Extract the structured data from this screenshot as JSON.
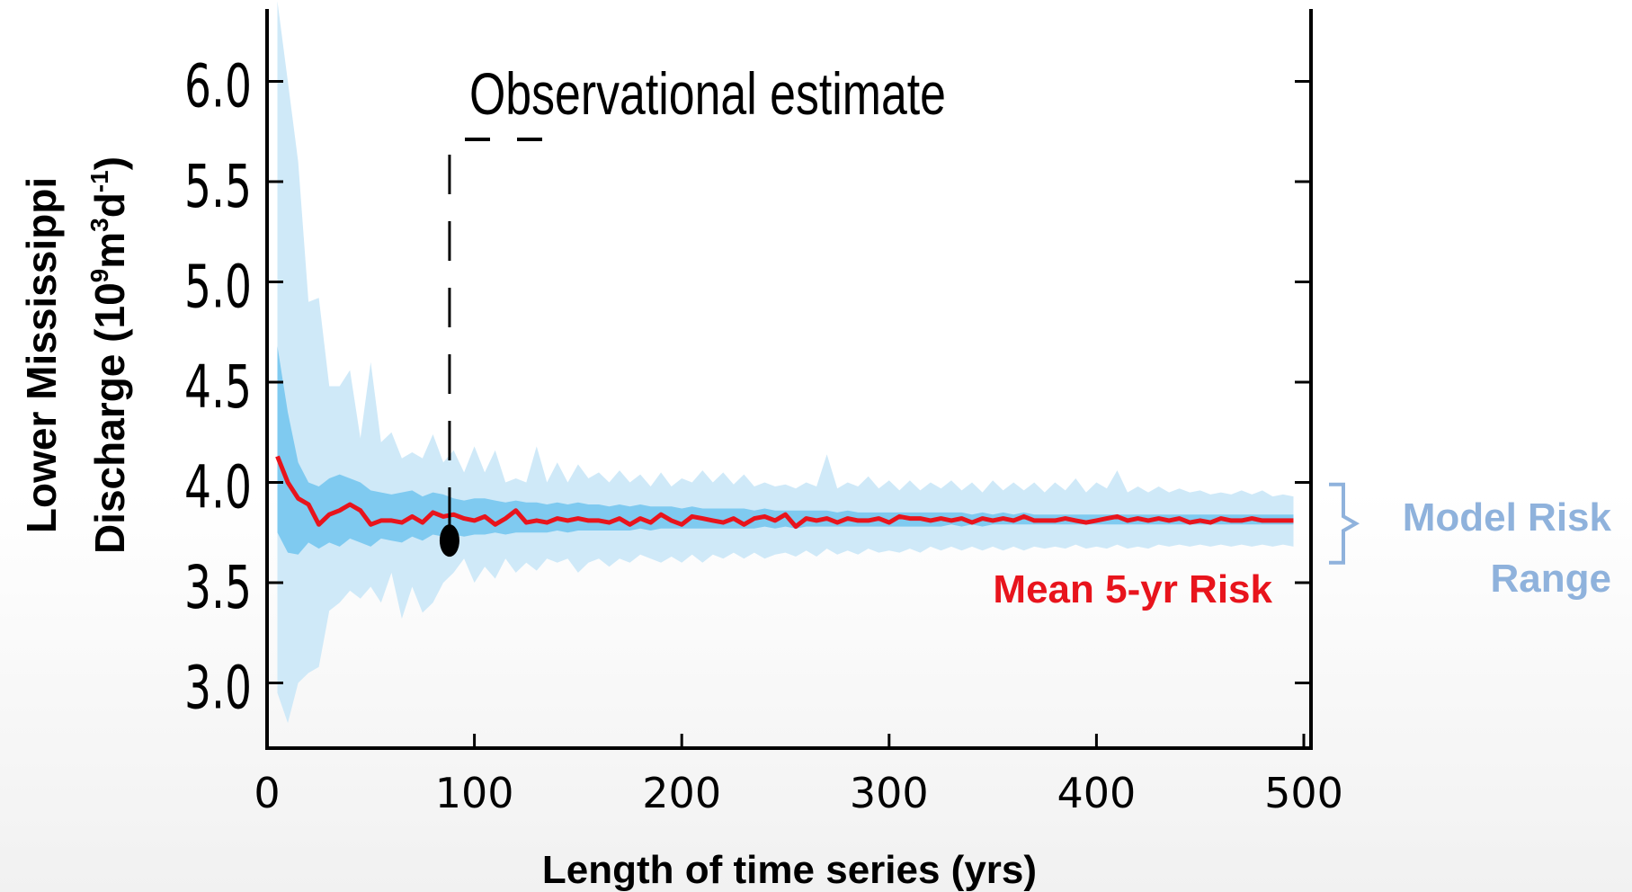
{
  "chart_data": {
    "type": "area",
    "xlabel": "Length of time series (yrs)",
    "ylabel_line1": "Lower Mississippi",
    "ylabel_line2": "Discharge (10",
    "ylabel_sup1": "9",
    "ylabel_mid": "m",
    "ylabel_sup2": "3",
    "ylabel_mid2": "d",
    "ylabel_sup3": "-1",
    "ylabel_end": ")",
    "xlim": [
      0,
      500
    ],
    "ylim": [
      2.7,
      6.35
    ],
    "x_ticks": [
      "0",
      "100",
      "200",
      "300",
      "400",
      "500"
    ],
    "y_ticks": [
      "3.0",
      "3.5",
      "4.0",
      "4.5",
      "5.0",
      "5.5",
      "6.0"
    ],
    "annotation_observational": "Observational estimate",
    "observational_point": {
      "x": 88,
      "y": 3.71
    },
    "mean_label": "Mean 5-yr Risk",
    "range_label_line1": "Model Risk",
    "range_label_line2": "Range",
    "colors": {
      "outer_band": "#cfe9f8",
      "inner_band": "#7fcaf0",
      "mean_line": "#e8141c",
      "range_text": "#8fb2dc",
      "axis": "#000000"
    },
    "x": [
      5,
      10,
      15,
      20,
      25,
      30,
      35,
      40,
      45,
      50,
      55,
      60,
      65,
      70,
      75,
      80,
      85,
      90,
      95,
      100,
      105,
      110,
      115,
      120,
      125,
      130,
      135,
      140,
      145,
      150,
      155,
      160,
      165,
      170,
      175,
      180,
      185,
      190,
      195,
      200,
      205,
      210,
      215,
      220,
      225,
      230,
      235,
      240,
      245,
      250,
      255,
      260,
      265,
      270,
      275,
      280,
      285,
      290,
      295,
      300,
      305,
      310,
      315,
      320,
      325,
      330,
      335,
      340,
      345,
      350,
      355,
      360,
      365,
      370,
      375,
      380,
      385,
      390,
      395,
      400,
      405,
      410,
      415,
      420,
      425,
      430,
      435,
      440,
      445,
      450,
      455,
      460,
      465,
      470,
      475,
      480,
      485,
      490,
      495
    ],
    "series": [
      {
        "role": "mean",
        "values": [
          4.13,
          4.0,
          3.92,
          3.89,
          3.79,
          3.84,
          3.86,
          3.89,
          3.86,
          3.79,
          3.81,
          3.81,
          3.8,
          3.83,
          3.8,
          3.85,
          3.83,
          3.84,
          3.82,
          3.81,
          3.83,
          3.79,
          3.82,
          3.86,
          3.8,
          3.81,
          3.8,
          3.82,
          3.81,
          3.82,
          3.81,
          3.81,
          3.8,
          3.82,
          3.79,
          3.82,
          3.8,
          3.84,
          3.81,
          3.79,
          3.83,
          3.82,
          3.81,
          3.8,
          3.82,
          3.79,
          3.82,
          3.83,
          3.81,
          3.84,
          3.78,
          3.82,
          3.81,
          3.82,
          3.8,
          3.82,
          3.81,
          3.81,
          3.82,
          3.8,
          3.83,
          3.82,
          3.82,
          3.81,
          3.82,
          3.81,
          3.82,
          3.8,
          3.82,
          3.81,
          3.82,
          3.81,
          3.83,
          3.81,
          3.81,
          3.81,
          3.82,
          3.81,
          3.8,
          3.81,
          3.82,
          3.83,
          3.81,
          3.82,
          3.81,
          3.82,
          3.81,
          3.82,
          3.8,
          3.81,
          3.8,
          3.82,
          3.81,
          3.81,
          3.82,
          3.81,
          3.81,
          3.81,
          3.81
        ]
      },
      {
        "role": "outer_upper",
        "values": [
          6.4,
          6.0,
          5.6,
          4.9,
          4.92,
          4.48,
          4.48,
          4.56,
          4.22,
          4.6,
          4.2,
          4.25,
          4.12,
          4.15,
          4.12,
          4.24,
          4.1,
          4.16,
          4.05,
          4.18,
          4.05,
          4.16,
          4.0,
          4.02,
          4.0,
          4.18,
          4.0,
          4.1,
          4.0,
          4.09,
          4.02,
          4.05,
          4.0,
          4.06,
          4.0,
          4.04,
          3.98,
          4.05,
          3.98,
          4.02,
          4.0,
          4.06,
          4.0,
          4.05,
          3.99,
          4.04,
          3.98,
          4.0,
          3.98,
          3.99,
          3.97,
          4.0,
          3.98,
          4.14,
          3.97,
          4.0,
          3.98,
          4.03,
          3.97,
          4.01,
          3.96,
          4.01,
          3.96,
          4.0,
          3.97,
          4.01,
          3.96,
          4.0,
          3.95,
          4.01,
          3.96,
          4.0,
          3.96,
          4.0,
          3.95,
          4.0,
          3.96,
          4.02,
          3.95,
          4.0,
          3.97,
          4.06,
          3.95,
          3.98,
          3.95,
          3.98,
          3.95,
          3.97,
          3.95,
          3.96,
          3.94,
          3.95,
          3.94,
          3.96,
          3.94,
          3.96,
          3.93,
          3.94,
          3.93
        ]
      },
      {
        "role": "outer_lower",
        "values": [
          2.95,
          2.8,
          3.0,
          3.05,
          3.08,
          3.36,
          3.4,
          3.46,
          3.42,
          3.48,
          3.4,
          3.55,
          3.32,
          3.48,
          3.35,
          3.4,
          3.5,
          3.55,
          3.62,
          3.5,
          3.58,
          3.52,
          3.62,
          3.55,
          3.6,
          3.56,
          3.62,
          3.6,
          3.62,
          3.55,
          3.6,
          3.62,
          3.58,
          3.62,
          3.6,
          3.64,
          3.62,
          3.6,
          3.63,
          3.6,
          3.64,
          3.6,
          3.64,
          3.62,
          3.65,
          3.62,
          3.65,
          3.62,
          3.64,
          3.65,
          3.63,
          3.66,
          3.63,
          3.67,
          3.64,
          3.66,
          3.64,
          3.67,
          3.65,
          3.66,
          3.65,
          3.67,
          3.65,
          3.68,
          3.66,
          3.68,
          3.66,
          3.68,
          3.66,
          3.68,
          3.66,
          3.68,
          3.66,
          3.68,
          3.67,
          3.68,
          3.67,
          3.69,
          3.67,
          3.68,
          3.67,
          3.69,
          3.67,
          3.68,
          3.67,
          3.69,
          3.68,
          3.69,
          3.68,
          3.69,
          3.68,
          3.69,
          3.68,
          3.69,
          3.68,
          3.69,
          3.68,
          3.69,
          3.68
        ]
      },
      {
        "role": "inner_upper",
        "values": [
          4.68,
          4.35,
          4.1,
          4.0,
          3.98,
          4.02,
          4.04,
          4.02,
          4.0,
          3.96,
          3.95,
          3.94,
          3.95,
          3.96,
          3.93,
          3.95,
          3.94,
          3.92,
          3.91,
          3.92,
          3.92,
          3.91,
          3.9,
          3.91,
          3.9,
          3.9,
          3.89,
          3.9,
          3.89,
          3.9,
          3.89,
          3.89,
          3.88,
          3.89,
          3.88,
          3.89,
          3.88,
          3.88,
          3.88,
          3.87,
          3.88,
          3.87,
          3.87,
          3.87,
          3.87,
          3.87,
          3.86,
          3.87,
          3.86,
          3.86,
          3.86,
          3.86,
          3.86,
          3.86,
          3.85,
          3.86,
          3.85,
          3.85,
          3.85,
          3.85,
          3.85,
          3.85,
          3.85,
          3.85,
          3.85,
          3.85,
          3.85,
          3.84,
          3.85,
          3.84,
          3.85,
          3.84,
          3.85,
          3.84,
          3.84,
          3.84,
          3.84,
          3.84,
          3.84,
          3.84,
          3.84,
          3.84,
          3.84,
          3.84,
          3.84,
          3.84,
          3.84,
          3.84,
          3.84,
          3.84,
          3.84,
          3.84,
          3.84,
          3.84,
          3.84,
          3.84,
          3.84,
          3.84,
          3.84
        ]
      },
      {
        "role": "inner_lower",
        "values": [
          3.75,
          3.65,
          3.64,
          3.7,
          3.67,
          3.7,
          3.68,
          3.72,
          3.7,
          3.68,
          3.72,
          3.71,
          3.7,
          3.73,
          3.71,
          3.74,
          3.73,
          3.74,
          3.73,
          3.74,
          3.74,
          3.75,
          3.74,
          3.75,
          3.75,
          3.75,
          3.75,
          3.76,
          3.75,
          3.76,
          3.76,
          3.76,
          3.76,
          3.76,
          3.76,
          3.77,
          3.76,
          3.77,
          3.77,
          3.77,
          3.77,
          3.77,
          3.77,
          3.77,
          3.77,
          3.77,
          3.77,
          3.78,
          3.77,
          3.78,
          3.77,
          3.78,
          3.78,
          3.78,
          3.78,
          3.78,
          3.78,
          3.78,
          3.78,
          3.78,
          3.78,
          3.78,
          3.78,
          3.78,
          3.78,
          3.79,
          3.78,
          3.79,
          3.78,
          3.79,
          3.79,
          3.79,
          3.79,
          3.79,
          3.79,
          3.79,
          3.79,
          3.79,
          3.79,
          3.79,
          3.79,
          3.79,
          3.79,
          3.79,
          3.79,
          3.79,
          3.79,
          3.79,
          3.79,
          3.79,
          3.79,
          3.79,
          3.79,
          3.79,
          3.79,
          3.79,
          3.79,
          3.79,
          3.79
        ]
      }
    ]
  }
}
